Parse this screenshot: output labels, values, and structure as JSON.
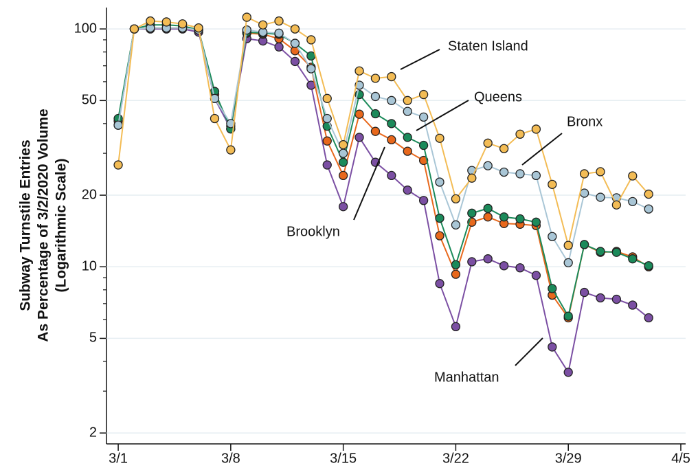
{
  "chart_data": {
    "type": "line",
    "y_label": [
      "Subway Turnstile Entries",
      "As Percentage of 3/2/2020 Volume",
      "(Logarithmic Scale)"
    ],
    "log_y": true,
    "grid": true,
    "x": [
      1,
      2,
      3,
      4,
      5,
      6,
      7,
      8,
      9,
      10,
      11,
      12,
      13,
      14,
      15,
      16,
      17,
      18,
      19,
      20,
      21,
      22,
      23,
      24,
      25,
      26,
      27,
      28,
      29,
      30,
      31,
      32,
      33,
      34
    ],
    "xlim": [
      0.27,
      36.3
    ],
    "xticks": [
      {
        "value": 1,
        "label": "3/1"
      },
      {
        "value": 8,
        "label": "3/8"
      },
      {
        "value": 15,
        "label": "3/15"
      },
      {
        "value": 22,
        "label": "3/22"
      },
      {
        "value": 29,
        "label": "3/29"
      },
      {
        "value": 36,
        "label": "4/5"
      }
    ],
    "ylim": [
      1.8,
      123
    ],
    "yticks": [
      2,
      5,
      10,
      20,
      50,
      100
    ],
    "minor_yticks": [
      3,
      4,
      6,
      7,
      8,
      9,
      30,
      40,
      60,
      70,
      80,
      90
    ],
    "series": [
      {
        "name": "Manhattan",
        "color": "#7b4fa3",
        "values": [
          39.4,
          100,
          100,
          100,
          100,
          97,
          51,
          38,
          91,
          89,
          84,
          73,
          58,
          26.8,
          17.9,
          35,
          27.5,
          24.2,
          21,
          19,
          8.5,
          5.6,
          10.5,
          10.8,
          10.1,
          9.9,
          9.2,
          4.6,
          3.6,
          7.8,
          7.4,
          7.3,
          6.9,
          6.1
        ]
      },
      {
        "name": "Brooklyn",
        "color": "#e8681c",
        "values": [
          41,
          100,
          101,
          101,
          101,
          99,
          53,
          39,
          96,
          95,
          91,
          81,
          69,
          33.8,
          24.2,
          43.8,
          37.1,
          34.2,
          30.6,
          28,
          13.5,
          9.3,
          15.4,
          16.2,
          15.2,
          15.1,
          14.9,
          7.6,
          6.1,
          12.4,
          11.5,
          11.6,
          11,
          10
        ]
      },
      {
        "name": "Queens",
        "color": "#1b8a5a",
        "values": [
          42,
          100,
          104,
          104,
          103,
          99,
          54.6,
          38,
          97,
          96,
          95,
          87,
          77,
          39,
          27.5,
          53,
          44,
          40,
          35,
          32.4,
          16,
          10.2,
          16.8,
          17.6,
          16.2,
          15.9,
          15.4,
          8.1,
          6.2,
          12.4,
          11.6,
          11.5,
          10.8,
          10.1
        ]
      },
      {
        "name": "Bronx",
        "color": "#a9c6d6",
        "values": [
          39.4,
          100,
          101,
          101,
          101,
          99,
          51,
          40,
          99,
          97,
          96,
          87,
          68,
          42,
          30,
          58,
          52,
          50,
          45,
          42.6,
          22.7,
          15,
          25.4,
          26.6,
          25,
          24.6,
          24.2,
          13.4,
          10.4,
          20.4,
          19.6,
          19.5,
          18.8,
          17.5
        ]
      },
      {
        "name": "Staten Island",
        "color": "#f3bc55",
        "values": [
          26.8,
          100,
          108,
          107,
          105,
          101,
          42,
          31,
          112,
          104,
          108,
          100,
          90,
          51,
          32.6,
          66.6,
          62,
          63,
          50,
          53,
          34.7,
          19.3,
          23.6,
          33.1,
          31.4,
          36.1,
          37.9,
          22.2,
          12.3,
          24.6,
          25.1,
          18.2,
          24.1,
          20.2
        ]
      }
    ],
    "annotations": [
      "Staten Island",
      "Queens",
      "Bronx",
      "Brooklyn",
      "Manhattan"
    ]
  }
}
